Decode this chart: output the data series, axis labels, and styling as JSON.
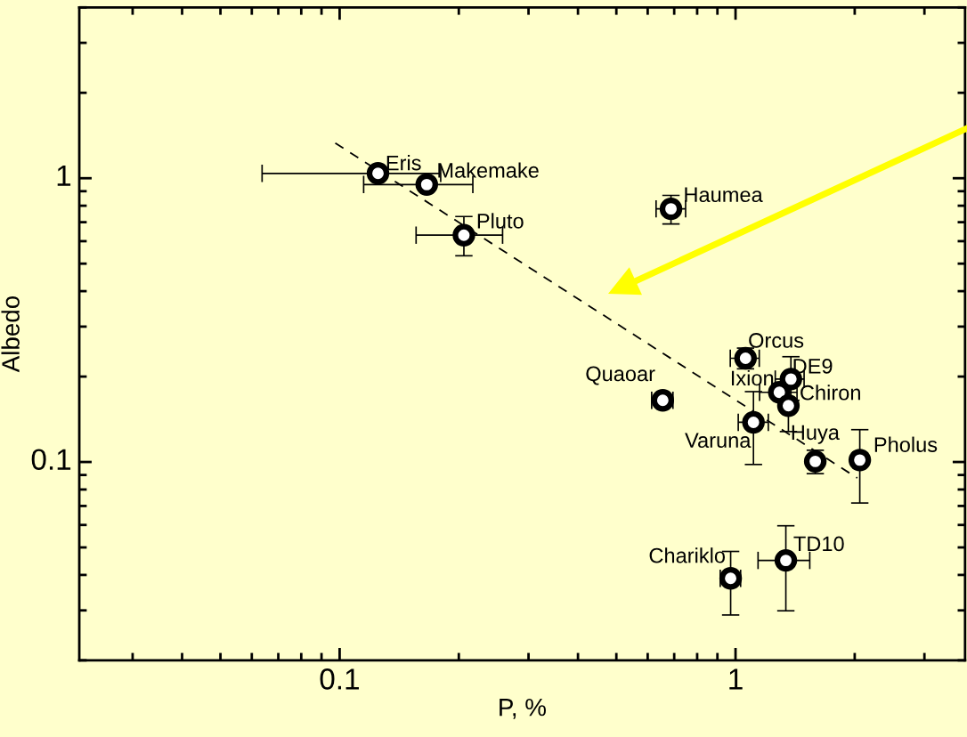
{
  "chart_data": {
    "type": "scatter",
    "xlabel": "P, %",
    "ylabel": "Albedo",
    "log": "xy",
    "xlim": [
      0.022,
      3.8
    ],
    "ylim": [
      0.02,
      4
    ],
    "xticks": [
      0.1,
      1
    ],
    "yticks": [
      0.1,
      1
    ],
    "marker": "circle",
    "series": [
      {
        "type": "scatter",
        "color": "#000000",
        "x": [
          0.125,
          0.166,
          0.206,
          0.687,
          1.06,
          1.38,
          1.29,
          1.36,
          0.655,
          1.11,
          1.59,
          2.06,
          0.972,
          1.34
        ],
        "values": [
          1.04,
          0.95,
          0.63,
          0.78,
          0.232,
          0.196,
          0.176,
          0.158,
          0.165,
          0.138,
          0.1005,
          0.1016,
          0.0389,
          0.045
        ],
        "errors": [
          null,
          null,
          [
            0.533,
            0.733
          ],
          [
            0.69,
            0.87
          ],
          [
            0.213,
            0.252
          ],
          [
            0.165,
            0.235
          ],
          null,
          [
            0.128,
            0.19
          ],
          null,
          [
            0.098,
            0.177
          ],
          [
            0.091,
            0.11
          ],
          [
            0.0717,
            0.13
          ],
          [
            0.0289,
            0.0484
          ],
          [
            0.0299,
            0.0596
          ]
        ],
        "xerrors": [
          [
            0.0637,
            0.18
          ],
          [
            0.115,
            0.217
          ],
          [
            0.156,
            0.258
          ],
          [
            0.63,
            0.748
          ],
          [
            0.97,
            1.148
          ],
          [
            1.26,
            1.49
          ],
          [
            1.15,
            1.43
          ],
          null,
          [
            0.614,
            0.695
          ],
          [
            1.016,
            1.21
          ],
          null,
          [
            1.98,
            2.13
          ],
          [
            0.915,
            1.03
          ],
          [
            1.14,
            1.54
          ]
        ]
      },
      {
        "type": "line",
        "color": "#000000",
        "line_style": "dashed",
        "marker": "none",
        "x": [
          0.0975,
          2.03
        ],
        "values": [
          1.33,
          0.0878
        ]
      }
    ],
    "annotations": [
      {
        "text": "Eris",
        "x": 0.125,
        "y": 1.04
      },
      {
        "text": "Makemake",
        "x": 0.166,
        "y": 0.95
      },
      {
        "text": "Pluto",
        "x": 0.206,
        "y": 0.63
      },
      {
        "text": "Haumea",
        "x": 0.687,
        "y": 0.78
      },
      {
        "text": "Orcus",
        "x": 1.06,
        "y": 0.232
      },
      {
        "text": "DE9",
        "x": 1.38,
        "y": 0.196
      },
      {
        "text": "Ixion",
        "x": 1.29,
        "y": 0.176
      },
      {
        "text": "Chiron",
        "x": 1.36,
        "y": 0.158
      },
      {
        "text": "Quaoar",
        "x": 0.655,
        "y": 0.165
      },
      {
        "text": "Varuna",
        "x": 1.11,
        "y": 0.138
      },
      {
        "text": "Huya",
        "x": 1.59,
        "y": 0.1005
      },
      {
        "text": "Pholus",
        "x": 2.06,
        "y": 0.1016
      },
      {
        "text": "Chariklo",
        "x": 0.972,
        "y": 0.0389
      },
      {
        "text": "TD10",
        "x": 1.34,
        "y": 0.045
      }
    ]
  }
}
